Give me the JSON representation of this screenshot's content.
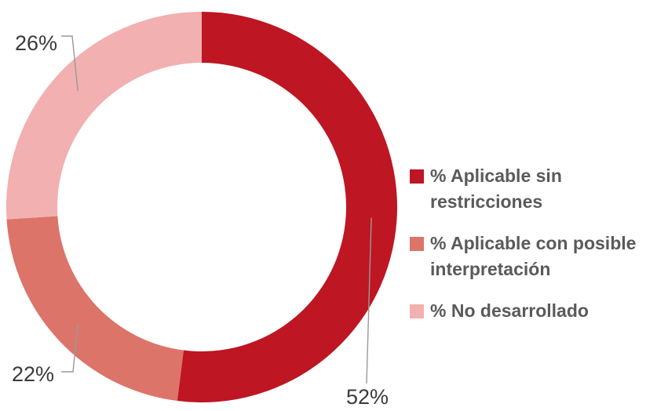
{
  "chart_data": {
    "type": "pie",
    "variant": "donut",
    "title": "",
    "categories": [
      "% Aplicable sin restricciones",
      "% Aplicable con posible interpretación",
      "% No desarrollado"
    ],
    "values": [
      52,
      22,
      26
    ],
    "labels": [
      "52%",
      "22%",
      "26%"
    ],
    "colors": [
      "#be1622",
      "#dc7469",
      "#f2b0b0"
    ],
    "legend_position": "right"
  }
}
